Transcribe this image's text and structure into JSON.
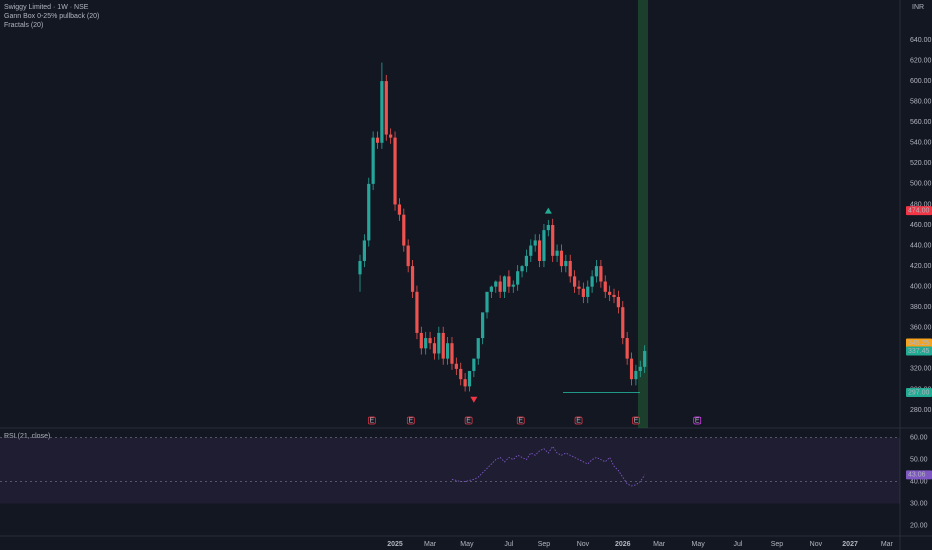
{
  "chart_data": {
    "type": "candlestick",
    "title": "Swiggy Limited · 1W · NSE",
    "indicators": [
      "Gann Box 0-25% pullback (20)",
      "Fractals (20)"
    ],
    "currency": "INR",
    "candles": {
      "open": [
        412,
        425,
        445,
        500,
        545,
        540,
        600,
        548,
        545,
        480,
        470,
        440,
        420,
        395,
        355,
        340,
        350,
        345,
        335,
        355,
        330,
        345,
        325,
        320,
        310,
        303,
        318,
        330,
        350,
        375,
        395,
        400,
        405,
        395,
        410,
        400,
        402,
        415,
        420,
        430,
        440,
        445,
        425,
        455,
        460,
        430,
        435,
        420,
        425,
        410,
        400,
        398,
        390,
        400,
        410,
        420,
        405,
        395,
        392,
        390,
        380,
        350,
        330,
        310,
        318,
        322
      ],
      "high": [
        431,
        451,
        506,
        551,
        551,
        618,
        606,
        554,
        551,
        486,
        476,
        446,
        426,
        401,
        361,
        356,
        356,
        351,
        361,
        361,
        351,
        351,
        331,
        326,
        316,
        309,
        324,
        336,
        356,
        381,
        401,
        406,
        411,
        411,
        416,
        406,
        421,
        421,
        436,
        446,
        451,
        451,
        461,
        465,
        466,
        441,
        441,
        431,
        431,
        416,
        406,
        404,
        406,
        416,
        426,
        426,
        411,
        401,
        398,
        396,
        386,
        356,
        336,
        324,
        328,
        343
      ],
      "low": [
        395,
        419,
        439,
        494,
        534,
        534,
        542,
        539,
        474,
        464,
        434,
        414,
        389,
        349,
        334,
        334,
        339,
        329,
        329,
        324,
        324,
        319,
        314,
        304,
        298,
        298,
        312,
        324,
        344,
        369,
        389,
        394,
        389,
        389,
        394,
        394,
        396,
        409,
        414,
        424,
        434,
        419,
        419,
        449,
        424,
        424,
        414,
        414,
        404,
        394,
        392,
        384,
        384,
        394,
        404,
        399,
        389,
        386,
        384,
        374,
        344,
        324,
        304,
        304,
        312,
        316
      ],
      "close": [
        425,
        445,
        500,
        545,
        540,
        600,
        548,
        545,
        480,
        470,
        440,
        420,
        395,
        355,
        340,
        350,
        345,
        335,
        355,
        330,
        345,
        325,
        320,
        310,
        303,
        318,
        330,
        350,
        375,
        395,
        400,
        405,
        395,
        410,
        400,
        402,
        415,
        420,
        430,
        440,
        445,
        425,
        455,
        460,
        430,
        435,
        420,
        425,
        410,
        400,
        398,
        390,
        400,
        410,
        420,
        405,
        395,
        392,
        390,
        380,
        350,
        330,
        310,
        318,
        322,
        337.45
      ]
    },
    "xlim": [
      -82.2,
      123.3
    ],
    "xticks": [
      {
        "value": 8,
        "label": "2025"
      },
      {
        "value": 16,
        "label": "Mar"
      },
      {
        "value": 24.4,
        "label": "May"
      },
      {
        "value": 34,
        "label": "Jul"
      },
      {
        "value": 42,
        "label": "Sep"
      },
      {
        "value": 50.9,
        "label": "Nov"
      },
      {
        "value": 60,
        "label": "2026"
      },
      {
        "value": 68.3,
        "label": "Mar"
      },
      {
        "value": 77.2,
        "label": "May"
      },
      {
        "value": 86.3,
        "label": "Jul"
      },
      {
        "value": 95.2,
        "label": "Sep"
      },
      {
        "value": 104.1,
        "label": "Nov"
      },
      {
        "value": 111.9,
        "label": "2027"
      },
      {
        "value": 120.3,
        "label": "Mar"
      }
    ],
    "ylim": [
      262.5,
      678.9
    ],
    "yticks": [
      {
        "value": 640,
        "label": "640.00"
      },
      {
        "value": 620,
        "label": "620.00"
      },
      {
        "value": 600,
        "label": "600.00"
      },
      {
        "value": 580,
        "label": "580.00"
      },
      {
        "value": 560,
        "label": "560.00"
      },
      {
        "value": 540,
        "label": "540.00"
      },
      {
        "value": 520,
        "label": "520.00"
      },
      {
        "value": 500,
        "label": "500.00"
      },
      {
        "value": 480,
        "label": "480.00"
      },
      {
        "value": 460,
        "label": "460.00"
      },
      {
        "value": 440,
        "label": "440.00"
      },
      {
        "value": 420,
        "label": "420.00"
      },
      {
        "value": 400,
        "label": "400.00"
      },
      {
        "value": 380,
        "label": "380.00"
      },
      {
        "value": 360,
        "label": "360.00"
      },
      {
        "value": 340,
        "label": "340.00"
      },
      {
        "value": 320,
        "label": "320.00"
      },
      {
        "value": 300,
        "label": "300.00"
      },
      {
        "value": 280,
        "label": "280.00"
      }
    ],
    "price_labels": [
      {
        "value": 474,
        "label": "474.00",
        "color": "#f23645"
      },
      {
        "value": 345.25,
        "label": "345.25",
        "color": "#f7a21b"
      },
      {
        "value": 337.45,
        "label": "337.45",
        "color": "#22ab94"
      },
      {
        "value": 297,
        "label": "297.00",
        "color": "#22ab94"
      }
    ],
    "fractals": [
      {
        "index": 43,
        "value": 474,
        "direction": "up"
      },
      {
        "index": 26,
        "value": 290,
        "direction": "down"
      }
    ],
    "earnings_markers": {
      "label": "E",
      "index": [
        2.7,
        11.6,
        24.8,
        36.7,
        49.9,
        63,
        77
      ]
    },
    "rsi": {
      "title": "RSI (21, close)",
      "color": "#7e57c2",
      "ylim": [
        15.2,
        64.4
      ],
      "yticks": [
        {
          "value": 60,
          "label": "60.00"
        },
        {
          "value": 50,
          "label": "50.00"
        },
        {
          "value": 40,
          "label": "40.00"
        },
        {
          "value": 30,
          "label": "30.00"
        },
        {
          "value": 20,
          "label": "20.00"
        }
      ],
      "values": [
        null,
        null,
        null,
        null,
        null,
        null,
        null,
        null,
        null,
        null,
        null,
        null,
        null,
        null,
        null,
        null,
        null,
        null,
        null,
        null,
        null,
        41,
        40.5,
        40,
        40,
        40.5,
        41,
        42,
        44,
        46,
        48,
        50,
        51,
        49,
        51,
        50,
        52,
        51,
        50,
        53,
        52,
        54,
        55,
        53,
        56,
        53,
        52,
        53,
        52,
        51,
        50,
        49,
        48,
        50,
        51,
        50,
        49,
        51,
        47,
        45,
        42,
        39,
        38,
        38.5,
        40,
        43.06
      ],
      "last_label": {
        "value": 43.06,
        "label": "43.06"
      }
    }
  }
}
